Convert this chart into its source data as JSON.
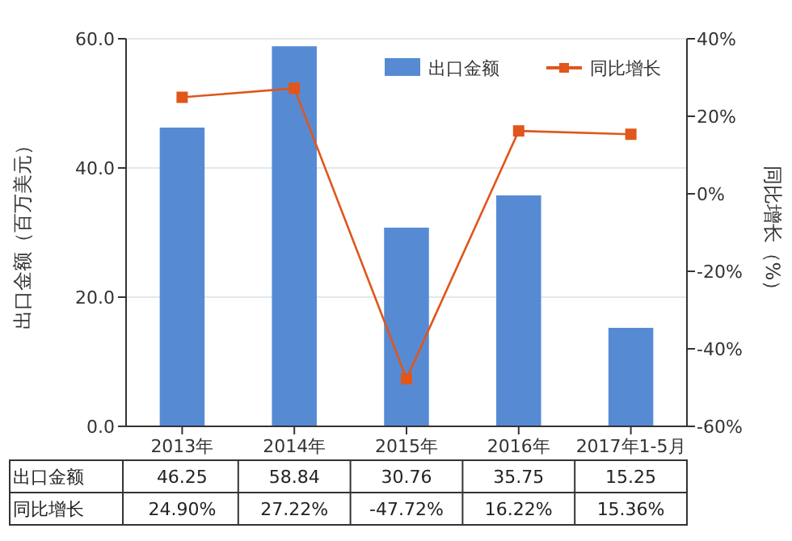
{
  "chart_data": {
    "type": "bar",
    "categories": [
      "2013年",
      "2014年",
      "2015年",
      "2016年",
      "2017年1-5月"
    ],
    "ylabel": "出口金额（百万美元）",
    "y2label": "同比增长（%）",
    "ylim": [
      0,
      60
    ],
    "yticks": [
      {
        "value": 0,
        "label": "0.0"
      },
      {
        "value": 20,
        "label": "20.0"
      },
      {
        "value": 40,
        "label": "40.0"
      },
      {
        "value": 60,
        "label": "60.0"
      }
    ],
    "y2lim": [
      -60,
      40
    ],
    "y2ticks": [
      {
        "value": -60,
        "label": "-60%"
      },
      {
        "value": -40,
        "label": "-40%"
      },
      {
        "value": -20,
        "label": "-20%"
      },
      {
        "value": 0,
        "label": "0%"
      },
      {
        "value": 20,
        "label": "20%"
      },
      {
        "value": 40,
        "label": "40%"
      }
    ],
    "series": [
      {
        "name": "出口金额",
        "color": "#568bd4",
        "values": [
          46.25,
          58.84,
          30.76,
          35.75,
          15.25
        ],
        "value_labels": [
          "46.25",
          "58.84",
          "30.76",
          "35.75",
          "15.25"
        ]
      },
      {
        "name": "同比增长",
        "type": "line",
        "axis": "y2",
        "color": "#e0561b",
        "marker": "square",
        "values": [
          24.9,
          27.22,
          -47.72,
          16.22,
          15.36
        ],
        "value_labels": [
          "24.90%",
          "27.22%",
          "-47.72%",
          "16.22%",
          "15.36%"
        ]
      }
    ],
    "grid": "y",
    "legend": "top right"
  }
}
